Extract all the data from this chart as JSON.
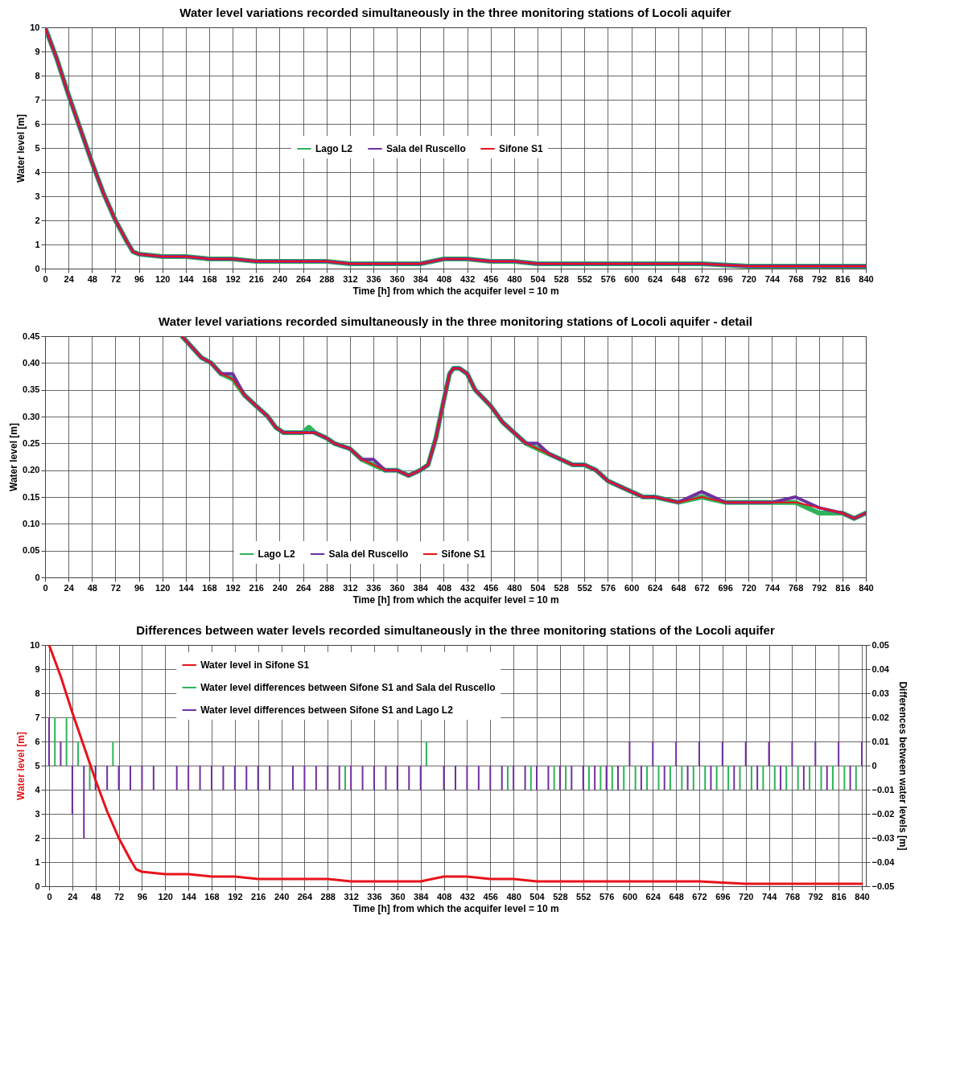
{
  "chart_data": [
    {
      "type": "line",
      "title": "Water level variations recorded simultaneously in the three monitoring stations of Locoli aquifer",
      "xlabel": "Time [h] from which the acquifer level = 10 m",
      "ylabel": "Water level  [m]",
      "x": [
        0,
        12,
        24,
        36,
        48,
        60,
        72,
        84,
        90,
        96,
        120,
        144,
        168,
        192,
        216,
        240,
        264,
        288,
        312,
        336,
        360,
        384,
        396,
        408,
        420,
        432,
        456,
        480,
        504,
        528,
        552,
        576,
        600,
        624,
        672,
        720,
        768,
        816,
        840
      ],
      "series": [
        {
          "name": "Lago L2",
          "color": "#2eb35a",
          "values": [
            10,
            8.7,
            7.2,
            5.8,
            4.4,
            3.1,
            2.0,
            1.1,
            0.7,
            0.6,
            0.5,
            0.5,
            0.4,
            0.4,
            0.3,
            0.3,
            0.3,
            0.3,
            0.2,
            0.2,
            0.2,
            0.2,
            0.3,
            0.4,
            0.4,
            0.4,
            0.3,
            0.3,
            0.2,
            0.2,
            0.2,
            0.2,
            0.2,
            0.2,
            0.2,
            0.1,
            0.1,
            0.1,
            0.1
          ]
        },
        {
          "name": "Sala del Ruscello",
          "color": "#7030a0",
          "values": [
            10,
            8.7,
            7.2,
            5.8,
            4.4,
            3.1,
            2.0,
            1.1,
            0.7,
            0.6,
            0.5,
            0.5,
            0.4,
            0.4,
            0.3,
            0.3,
            0.3,
            0.3,
            0.2,
            0.2,
            0.2,
            0.2,
            0.3,
            0.4,
            0.4,
            0.4,
            0.3,
            0.3,
            0.2,
            0.2,
            0.2,
            0.2,
            0.2,
            0.2,
            0.2,
            0.1,
            0.1,
            0.1,
            0.1
          ]
        },
        {
          "name": "Sifone S1",
          "color": "#e8131a",
          "values": [
            10,
            8.7,
            7.2,
            5.8,
            4.4,
            3.1,
            2.0,
            1.1,
            0.7,
            0.6,
            0.5,
            0.5,
            0.4,
            0.4,
            0.3,
            0.3,
            0.3,
            0.3,
            0.2,
            0.2,
            0.2,
            0.2,
            0.3,
            0.4,
            0.4,
            0.4,
            0.3,
            0.3,
            0.2,
            0.2,
            0.2,
            0.2,
            0.2,
            0.2,
            0.2,
            0.1,
            0.1,
            0.1,
            0.1
          ]
        }
      ],
      "xlim": [
        0,
        840
      ],
      "xticks": [
        0,
        24,
        48,
        72,
        96,
        120,
        144,
        168,
        192,
        216,
        240,
        264,
        288,
        312,
        336,
        360,
        384,
        408,
        432,
        456,
        480,
        504,
        528,
        552,
        576,
        600,
        624,
        648,
        672,
        696,
        720,
        744,
        768,
        792,
        816,
        840
      ],
      "ylim": [
        0,
        10
      ],
      "yticks": [
        0,
        1,
        2,
        3,
        4,
        5,
        6,
        7,
        8,
        9,
        10
      ],
      "grid": true,
      "legend": "center"
    },
    {
      "type": "line",
      "title": "Water level variations recorded simultaneously in the three monitoring stations of Locoli aquifer - detail",
      "xlabel": "Time [h] from which the acquifer level = 10 m",
      "ylabel": "Water level [m]",
      "x": [
        140,
        150,
        160,
        170,
        180,
        192,
        204,
        216,
        228,
        236,
        244,
        256,
        264,
        270,
        276,
        288,
        296,
        312,
        324,
        336,
        348,
        360,
        372,
        384,
        392,
        400,
        408,
        414,
        418,
        424,
        432,
        440,
        456,
        468,
        480,
        492,
        504,
        516,
        528,
        540,
        552,
        564,
        576,
        588,
        600,
        612,
        624,
        648,
        672,
        696,
        720,
        744,
        768,
        792,
        816,
        828,
        840
      ],
      "series": [
        {
          "name": "Lago L2",
          "color": "#2eb35a",
          "values": [
            0.45,
            0.43,
            0.41,
            0.4,
            0.38,
            0.37,
            0.34,
            0.32,
            0.3,
            0.28,
            0.27,
            0.27,
            0.27,
            0.28,
            0.27,
            0.26,
            0.25,
            0.24,
            0.22,
            0.21,
            0.2,
            0.2,
            0.19,
            0.2,
            0.21,
            0.26,
            0.33,
            0.38,
            0.39,
            0.39,
            0.38,
            0.35,
            0.32,
            0.29,
            0.27,
            0.25,
            0.24,
            0.23,
            0.22,
            0.21,
            0.21,
            0.2,
            0.18,
            0.17,
            0.16,
            0.15,
            0.15,
            0.14,
            0.15,
            0.14,
            0.14,
            0.14,
            0.14,
            0.12,
            0.12,
            0.11,
            0.12
          ]
        },
        {
          "name": "Sala del Ruscello",
          "color": "#7030a0",
          "values": [
            0.45,
            0.43,
            0.41,
            0.4,
            0.38,
            0.38,
            0.34,
            0.32,
            0.3,
            0.28,
            0.27,
            0.27,
            0.27,
            0.27,
            0.27,
            0.26,
            0.25,
            0.24,
            0.22,
            0.22,
            0.2,
            0.2,
            0.19,
            0.2,
            0.21,
            0.26,
            0.33,
            0.38,
            0.39,
            0.39,
            0.38,
            0.35,
            0.32,
            0.29,
            0.27,
            0.25,
            0.25,
            0.23,
            0.22,
            0.21,
            0.21,
            0.2,
            0.18,
            0.17,
            0.16,
            0.15,
            0.15,
            0.14,
            0.16,
            0.14,
            0.14,
            0.14,
            0.15,
            0.13,
            0.12,
            0.11,
            0.12
          ]
        },
        {
          "name": "Sifone S1",
          "color": "#e8131a",
          "values": [
            0.45,
            0.43,
            0.41,
            0.4,
            0.38,
            0.37,
            0.34,
            0.32,
            0.3,
            0.28,
            0.27,
            0.27,
            0.27,
            0.27,
            0.27,
            0.26,
            0.25,
            0.24,
            0.22,
            0.21,
            0.2,
            0.2,
            0.19,
            0.2,
            0.21,
            0.26,
            0.33,
            0.38,
            0.39,
            0.39,
            0.38,
            0.35,
            0.32,
            0.29,
            0.27,
            0.25,
            0.24,
            0.23,
            0.22,
            0.21,
            0.21,
            0.2,
            0.18,
            0.17,
            0.16,
            0.15,
            0.15,
            0.14,
            0.15,
            0.14,
            0.14,
            0.14,
            0.14,
            0.13,
            0.12,
            0.11,
            0.12
          ]
        }
      ],
      "xlim": [
        0,
        840
      ],
      "xticks": [
        0,
        24,
        48,
        72,
        96,
        120,
        144,
        168,
        192,
        216,
        240,
        264,
        288,
        312,
        336,
        360,
        384,
        408,
        432,
        456,
        480,
        504,
        528,
        552,
        576,
        600,
        624,
        648,
        672,
        696,
        720,
        744,
        768,
        792,
        816,
        840
      ],
      "ylim": [
        0,
        0.45
      ],
      "yticks": [
        {
          "value": 0,
          "label": "0"
        },
        {
          "value": 0.05,
          "label": "0.05"
        },
        {
          "value": 0.1,
          "label": "0.10"
        },
        {
          "value": 0.15,
          "label": "0.15"
        },
        {
          "value": 0.2,
          "label": "0.20"
        },
        {
          "value": 0.25,
          "label": "0.25"
        },
        {
          "value": 0.3,
          "label": "0.30"
        },
        {
          "value": 0.35,
          "label": "0.35"
        },
        {
          "value": 0.4,
          "label": "0.40"
        },
        {
          "value": 0.45,
          "label": "0.45"
        }
      ],
      "grid": true,
      "legend": "bottom"
    },
    {
      "type": "line",
      "title": "Differences between water levels recorded simultaneously in the three monitoring stations of the Locoli aquifer",
      "xlabel": "Time [h] from which the acquifer level = 10 m",
      "ylabel": "Water level [m]",
      "y2label": "Differences between water levels [m]",
      "series": [
        {
          "name": "Water level in Sifone S1",
          "color": "#e8131a",
          "x": [
            0,
            12,
            24,
            36,
            48,
            60,
            72,
            84,
            90,
            96,
            120,
            144,
            168,
            192,
            216,
            240,
            264,
            288,
            312,
            336,
            360,
            384,
            396,
            408,
            420,
            432,
            456,
            480,
            504,
            528,
            552,
            576,
            600,
            624,
            672,
            720,
            768,
            816,
            840
          ],
          "values": [
            10,
            8.7,
            7.2,
            5.8,
            4.4,
            3.1,
            2.0,
            1.1,
            0.7,
            0.6,
            0.5,
            0.5,
            0.4,
            0.4,
            0.3,
            0.3,
            0.3,
            0.3,
            0.2,
            0.2,
            0.2,
            0.2,
            0.3,
            0.4,
            0.4,
            0.4,
            0.3,
            0.3,
            0.2,
            0.2,
            0.2,
            0.2,
            0.2,
            0.2,
            0.2,
            0.1,
            0.1,
            0.1,
            0.1
          ]
        },
        {
          "name": "Water level differences between Sifone S1 and Sala del Ruscello",
          "color": "#2eb35a",
          "type": "bar",
          "axis": "y2",
          "x": [
            6,
            18,
            30,
            42,
            54,
            66,
            78,
            90,
            102,
            114,
            126,
            138,
            150,
            162,
            174,
            186,
            198,
            210,
            222,
            234,
            246,
            258,
            270,
            282,
            294,
            306,
            318,
            330,
            342,
            354,
            366,
            378,
            390,
            402,
            414,
            426,
            438,
            450,
            462,
            474,
            486,
            498,
            510,
            522,
            534,
            546,
            558,
            570,
            582,
            594,
            606,
            618,
            630,
            642,
            654,
            666,
            678,
            690,
            702,
            714,
            726,
            738,
            750,
            762,
            774,
            786,
            798,
            810,
            822,
            834
          ],
          "values": [
            0.02,
            0.02,
            0.01,
            -0.01,
            null,
            0.01,
            null,
            null,
            null,
            null,
            null,
            null,
            null,
            null,
            null,
            null,
            null,
            null,
            null,
            null,
            null,
            null,
            null,
            null,
            null,
            -0.01,
            null,
            null,
            null,
            null,
            null,
            null,
            0.01,
            null,
            null,
            null,
            null,
            null,
            null,
            -0.01,
            null,
            -0.01,
            null,
            -0.01,
            -0.01,
            null,
            -0.01,
            -0.01,
            -0.01,
            -0.01,
            -0.01,
            -0.01,
            -0.01,
            -0.01,
            -0.01,
            -0.01,
            -0.01,
            -0.01,
            -0.01,
            -0.01,
            -0.01,
            -0.01,
            -0.01,
            -0.01,
            -0.01,
            -0.01,
            -0.01,
            -0.01,
            -0.01,
            -0.01
          ]
        },
        {
          "name": "Water level differences between Sifone S1 and Lago L2",
          "color": "#7030a0",
          "type": "bar",
          "axis": "y2",
          "x": [
            0,
            12,
            24,
            36,
            48,
            60,
            72,
            84,
            96,
            108,
            120,
            132,
            144,
            156,
            168,
            180,
            192,
            204,
            216,
            228,
            240,
            252,
            264,
            276,
            288,
            300,
            312,
            324,
            336,
            348,
            360,
            372,
            384,
            396,
            408,
            420,
            432,
            444,
            456,
            468,
            480,
            492,
            504,
            516,
            528,
            540,
            552,
            564,
            576,
            588,
            600,
            612,
            624,
            636,
            648,
            660,
            672,
            684,
            696,
            708,
            720,
            732,
            744,
            756,
            768,
            780,
            792,
            804,
            816,
            828,
            840
          ],
          "values": [
            0.02,
            0.01,
            -0.02,
            -0.03,
            -0.01,
            -0.01,
            -0.01,
            -0.01,
            -0.01,
            -0.01,
            null,
            -0.01,
            -0.01,
            -0.01,
            -0.01,
            -0.01,
            -0.01,
            -0.01,
            -0.01,
            -0.01,
            null,
            -0.01,
            -0.01,
            -0.01,
            -0.01,
            -0.01,
            -0.01,
            -0.01,
            -0.01,
            -0.01,
            -0.01,
            -0.01,
            -0.01,
            null,
            -0.01,
            -0.01,
            -0.01,
            -0.01,
            -0.01,
            -0.01,
            -0.01,
            -0.01,
            -0.01,
            -0.01,
            -0.01,
            -0.01,
            -0.01,
            -0.01,
            -0.01,
            -0.01,
            0.01,
            -0.01,
            0.01,
            -0.01,
            0.01,
            -0.01,
            0.01,
            -0.01,
            0.01,
            -0.01,
            0.01,
            -0.01,
            0.01,
            -0.01,
            0.01,
            -0.01,
            0.01,
            -0.01,
            0.01,
            -0.01,
            0.01
          ]
        }
      ],
      "xlim": [
        0,
        840
      ],
      "xticks": [
        0,
        24,
        48,
        72,
        96,
        120,
        144,
        168,
        192,
        216,
        240,
        264,
        288,
        312,
        336,
        360,
        384,
        408,
        432,
        456,
        480,
        504,
        528,
        552,
        576,
        600,
        624,
        648,
        672,
        696,
        720,
        744,
        768,
        792,
        816,
        840
      ],
      "ylim": [
        0,
        10
      ],
      "yticks": [
        0,
        1,
        2,
        3,
        4,
        5,
        6,
        7,
        8,
        9,
        10
      ],
      "y2lim": [
        -0.05,
        0.05
      ],
      "y2ticks": [
        -0.05,
        -0.04,
        -0.03,
        -0.02,
        -0.01,
        {
          "value": 0,
          "label": "0"
        },
        0.01,
        0.02,
        0.03,
        0.04,
        0.05
      ],
      "grid": true,
      "legend": "top"
    }
  ]
}
